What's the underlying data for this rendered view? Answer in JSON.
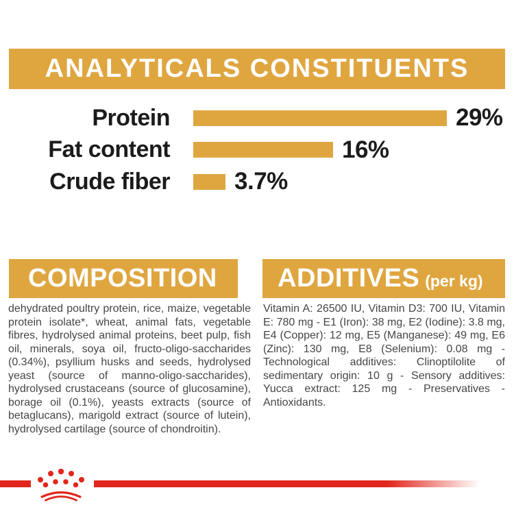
{
  "analyticals": {
    "title": "ANALYTICALS CONSTITUENTS"
  },
  "chart_data": {
    "type": "bar",
    "orientation": "horizontal",
    "title": "ANALYTICALS CONSTITUENTS",
    "categories": [
      "Protein",
      "Fat content",
      "Crude fiber"
    ],
    "values": [
      29,
      16,
      3.7
    ],
    "value_labels": [
      "29%",
      "16%",
      "3.7%"
    ],
    "unit": "%",
    "xlim": [
      0,
      29
    ],
    "grid": false,
    "bar_color": "#DFA640",
    "value_label_position": "end-of-bar"
  },
  "composition": {
    "heading": "COMPOSITION",
    "body": "dehydrated poultry protein, rice, maize, vegetable protein isolate*, wheat, animal fats, vegetable fibres, hydrolysed animal proteins, beet pulp, fish oil, minerals, soya oil, fructo-oligo-saccharides (0.34%), psyllium husks and seeds, hydrolysed yeast (source of manno-oligo-saccharides), hydrolysed crustaceans (source of glucosamine), borage oil (0.1%), yeasts extracts (source of betaglucans), marigold extract (source of lutein), hydrolysed cartilage (source of chondroitin)."
  },
  "additives": {
    "heading": "ADDITIVES",
    "heading_suffix": "(per kg)",
    "body": "Vitamin A: 26500 IU, Vitamin D3: 700 IU, Vitamin E: 780 mg - E1 (Iron): 38 mg, E2 (Iodine): 3.8 mg, E4 (Copper): 12 mg, E5 (Manganese): 49 mg, E6 (Zinc): 130 mg, E8 (Selenium): 0.08 mg - Technological additives: Clinoptilolite of sedimentary origin: 10 g - Sensory additives: Yucca extract: 125 mg - Preservatives - Antioxidants."
  },
  "footer": {
    "logo_icon": "royal-canin-crown-icon"
  },
  "colors": {
    "gold": "#DFA640",
    "red": "#E1261C",
    "heading_text": "#FFFFFF",
    "label_text": "#1B1B1B",
    "body_text": "#454545"
  }
}
